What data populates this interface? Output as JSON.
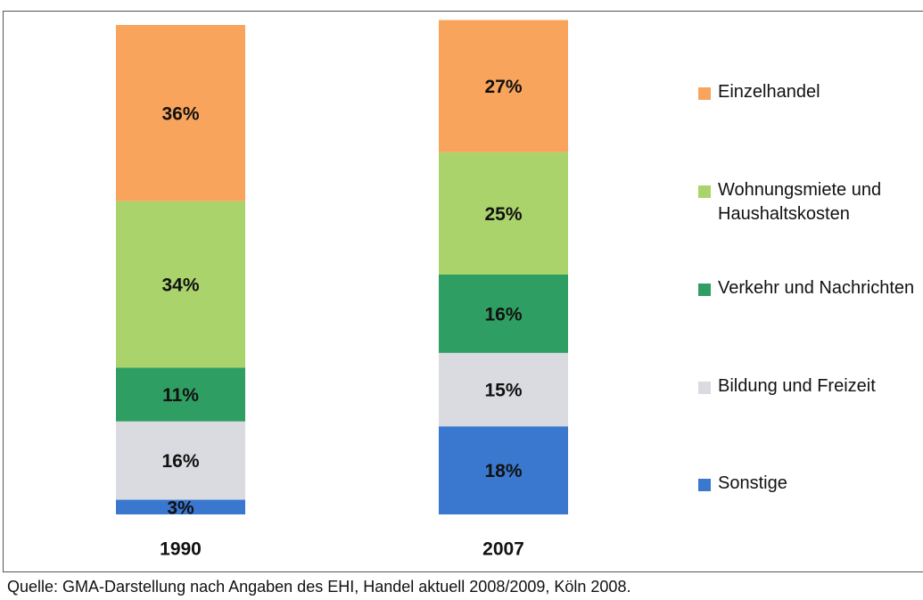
{
  "chart_data": {
    "type": "stacked_bar",
    "categories": [
      "1990",
      "2007"
    ],
    "series": [
      {
        "name": "Einzelhandel",
        "color": "#f9a45c",
        "values": [
          36,
          27
        ],
        "value_labels": [
          "36%",
          "27%"
        ]
      },
      {
        "name": "Wohnungsmiete und Haushaltskosten",
        "color": "#aad36c",
        "values": [
          34,
          25
        ],
        "value_labels": [
          "34%",
          "25%"
        ]
      },
      {
        "name": "Verkehr und Nachrichten",
        "color": "#2f9e63",
        "values": [
          11,
          16
        ],
        "value_labels": [
          "11%",
          "16%"
        ]
      },
      {
        "name": "Bildung und Freizeit",
        "color": "#dadbe0",
        "values": [
          16,
          15
        ],
        "value_labels": [
          "16%",
          "15%"
        ]
      },
      {
        "name": "Sonstige",
        "color": "#3a78d0",
        "values": [
          3,
          18
        ],
        "value_labels": [
          "3%",
          "18%"
        ]
      }
    ],
    "ylim": [
      0,
      100
    ],
    "legend": "right",
    "source": "Quelle: GMA-Darstellung nach Angaben des EHI, Handel aktuell 2008/2009, Köln 2008."
  }
}
